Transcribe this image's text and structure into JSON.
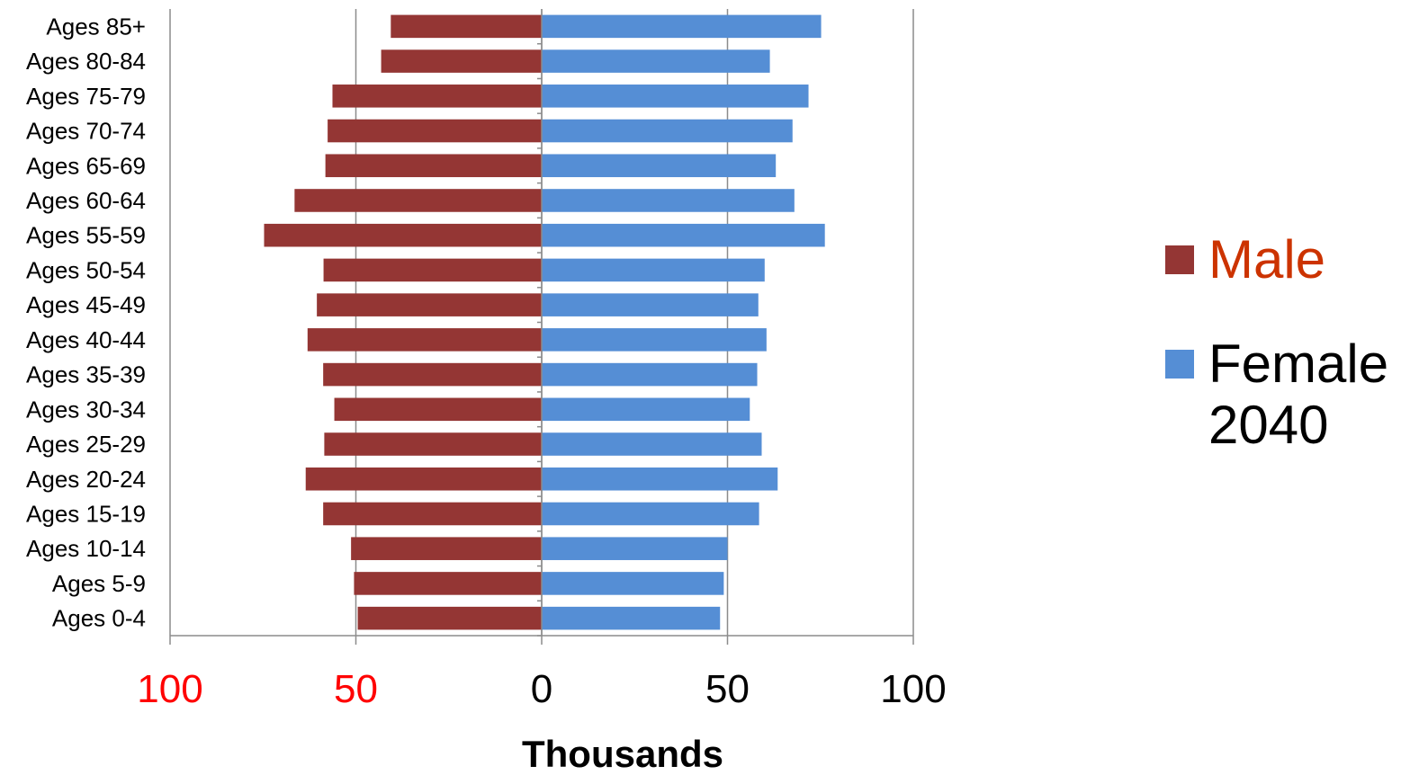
{
  "chart_data": {
    "type": "bar",
    "orientation": "horizontal",
    "layout": "population-pyramid",
    "categories": [
      "Ages 0-4",
      "Ages 5-9",
      "Ages 10-14",
      "Ages 15-19",
      "Ages 20-24",
      "Ages 25-29",
      "Ages 30-34",
      "Ages 35-39",
      "Ages 40-44",
      "Ages 45-49",
      "Ages 50-54",
      "Ages 55-59",
      "Ages 60-64",
      "Ages 65-69",
      "Ages 70-74",
      "Ages 75-79",
      "Ages 80-84",
      "Ages 85+"
    ],
    "series": [
      {
        "name": "Male",
        "color": "#943634",
        "side": "left",
        "values": [
          49.5,
          50.5,
          51.3,
          58.8,
          63.5,
          58.5,
          55.8,
          58.8,
          63.0,
          60.5,
          58.7,
          74.7,
          66.5,
          58.2,
          57.6,
          56.3,
          43.2,
          40.6
        ]
      },
      {
        "name": "Female\n2040",
        "color": "#558ED5",
        "side": "right",
        "values": [
          48.0,
          49.0,
          50.0,
          58.5,
          63.5,
          59.2,
          56.0,
          58.0,
          60.5,
          58.3,
          60.0,
          76.2,
          68.0,
          63.0,
          67.5,
          71.8,
          61.4,
          75.2
        ]
      }
    ],
    "xlim": [
      -100,
      100
    ],
    "xticks": [
      {
        "value": -100,
        "label": "100",
        "color": "#FF0000"
      },
      {
        "value": -50,
        "label": "50",
        "color": "#FF0000"
      },
      {
        "value": 0,
        "label": "0",
        "color": "#000000"
      },
      {
        "value": 50,
        "label": "50",
        "color": "#000000"
      },
      {
        "value": 100,
        "label": "100",
        "color": "#000000"
      }
    ],
    "xlabel": "Thousands",
    "grid": "vertical",
    "legend_position": "right"
  },
  "legend": {
    "male_label": "Male",
    "male_label_color": "#CC3300",
    "female_label": "Female\n2040",
    "female_label_color": "#000000"
  }
}
